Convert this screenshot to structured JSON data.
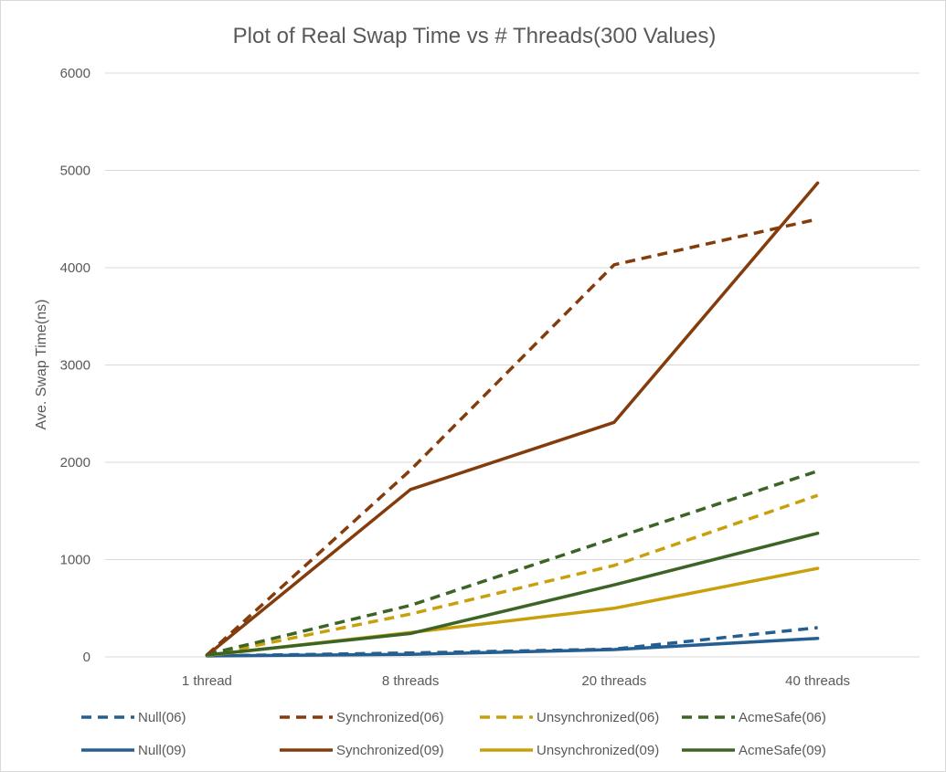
{
  "chart_data": {
    "type": "line",
    "title": "Plot of Real Swap Time vs # Threads(300 Values)",
    "xlabel": "",
    "ylabel": "Ave. Swap Time(ns)",
    "categories": [
      "1 thread",
      "8 threads",
      "20 threads",
      "40 threads"
    ],
    "ylim": [
      0,
      6000
    ],
    "yticks": [
      0,
      1000,
      2000,
      3000,
      4000,
      5000,
      6000
    ],
    "grid": true,
    "legend": "bottom",
    "series": [
      {
        "name": "Null(06)",
        "color": "#255e91",
        "style": "dashed",
        "values": [
          10,
          40,
          80,
          300
        ]
      },
      {
        "name": "Synchronized(06)",
        "color": "#843c0c",
        "style": "dashed",
        "values": [
          20,
          1920,
          4030,
          4500
        ]
      },
      {
        "name": "Unsynchronized(06)",
        "color": "#c9a00c",
        "style": "dashed",
        "values": [
          15,
          440,
          940,
          1660
        ]
      },
      {
        "name": "AcmeSafe(06)",
        "color": "#3c6425",
        "style": "dashed",
        "values": [
          25,
          530,
          1220,
          1910
        ]
      },
      {
        "name": "Null(09)",
        "color": "#255e91",
        "style": "solid",
        "values": [
          10,
          25,
          75,
          190
        ]
      },
      {
        "name": "Synchronized(09)",
        "color": "#843c0c",
        "style": "solid",
        "values": [
          15,
          1720,
          2410,
          4870
        ]
      },
      {
        "name": "Unsynchronized(09)",
        "color": "#c9a00c",
        "style": "solid",
        "values": [
          15,
          250,
          500,
          910
        ]
      },
      {
        "name": "AcmeSafe(09)",
        "color": "#3c6425",
        "style": "solid",
        "values": [
          20,
          240,
          740,
          1270
        ]
      }
    ]
  }
}
